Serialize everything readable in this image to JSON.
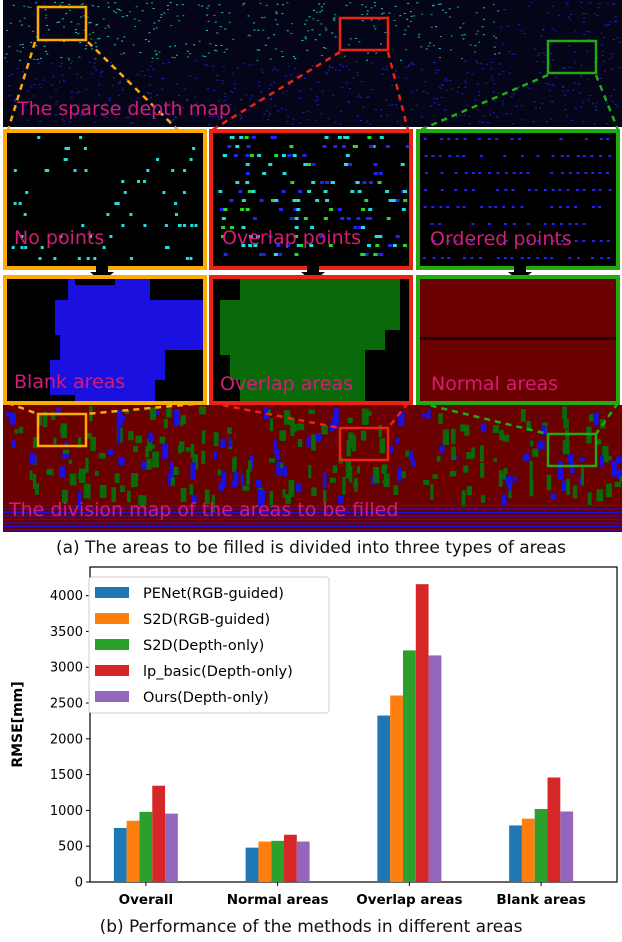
{
  "figure_a": {
    "sparse_label": "The sparse depth map",
    "panels_top": [
      "No points",
      "Overlap points",
      "Ordered points"
    ],
    "panels_bottom": [
      "Blank areas",
      "Overlap areas",
      "Normal areas"
    ],
    "division_label": "The division map of the areas to be filled",
    "caption": "(a) The areas to be filled is divided into three types of  areas",
    "colors": {
      "label": "#d81b77",
      "orange_box": "#ffaa00",
      "red_box": "#ee2211",
      "green_box": "#22aa11",
      "blank": "#1a10e0",
      "overlap": "#0a6a0a",
      "normal": "#6a0000"
    }
  },
  "chart_data": {
    "type": "bar",
    "categories": [
      "Overall",
      "Normal areas",
      "Overlap areas",
      "Blank areas"
    ],
    "series": [
      {
        "name": "PENet(RGB-guided)",
        "color": "#1f77b4",
        "values": [
          755,
          480,
          2325,
          790
        ]
      },
      {
        "name": "S2D(RGB-guided)",
        "color": "#ff7f0e",
        "values": [
          855,
          565,
          2605,
          885
        ]
      },
      {
        "name": "S2D(Depth-only)",
        "color": "#2ca02c",
        "values": [
          980,
          575,
          3235,
          1020
        ]
      },
      {
        "name": "lp_basic(Depth-only)",
        "color": "#d62728",
        "values": [
          1345,
          660,
          4160,
          1460
        ]
      },
      {
        "name": "Ours(Depth-only)",
        "color": "#9467bd",
        "values": [
          955,
          565,
          3165,
          985
        ]
      }
    ],
    "ylabel": "RMSE[mm]",
    "xlabel": "",
    "ylim": [
      0,
      4400
    ],
    "yticks": [
      0,
      500,
      1000,
      1500,
      2000,
      2500,
      3000,
      3500,
      4000
    ],
    "grid": false,
    "legend": "top-left",
    "caption": "(b) Performance of the methods in different areas"
  }
}
